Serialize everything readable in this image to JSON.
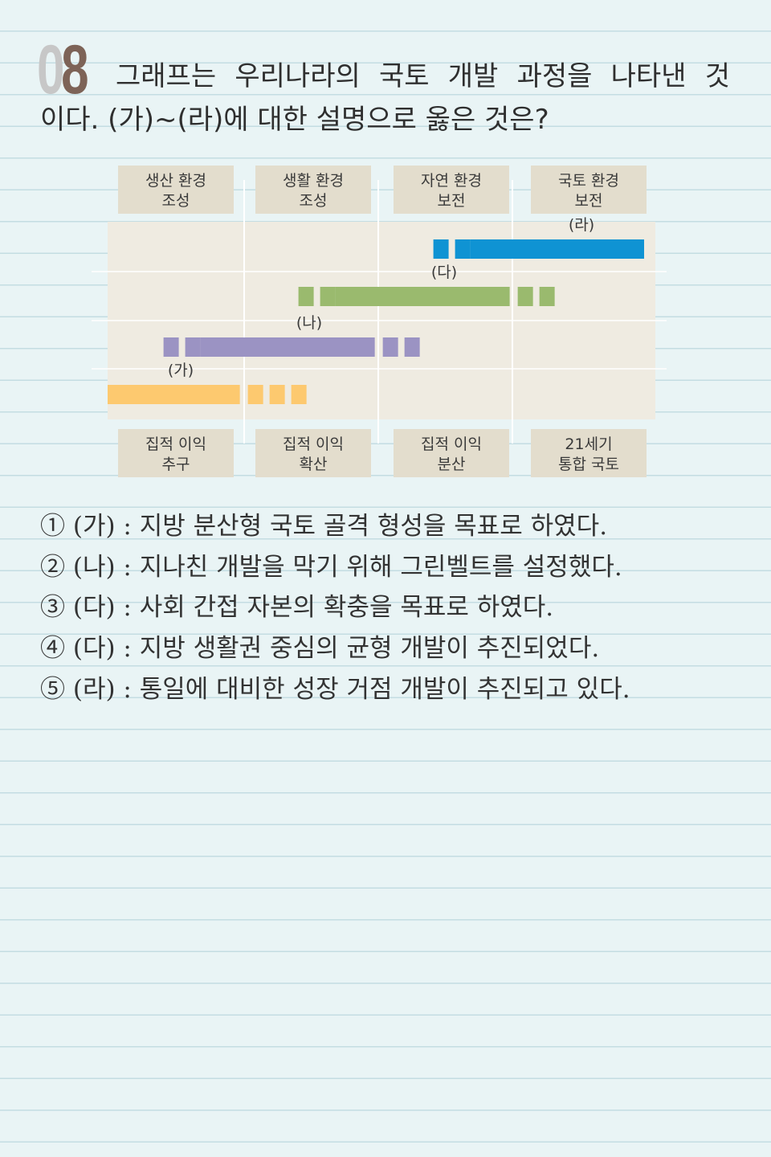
{
  "question": {
    "number_first": "0",
    "number_second": "8",
    "line1": "그래프는 우리나라의 국토 개발 과정을 나타낸 것",
    "line2": "이다. (가)~(라)에 대한 설명으로 옳은 것은?"
  },
  "chart_data": {
    "type": "timeline",
    "top_labels": [
      [
        "생산 환경",
        "조성"
      ],
      [
        "생활 환경",
        "조성"
      ],
      [
        "자연 환경",
        "보전"
      ],
      [
        "국토 환경",
        "보전"
      ]
    ],
    "bottom_labels": [
      [
        "집적 이익",
        "추구"
      ],
      [
        "집적 이익",
        "확산"
      ],
      [
        "집적 이익",
        "분산"
      ],
      [
        "21세기",
        "통합 국토"
      ]
    ],
    "series": [
      {
        "name": "(가)",
        "color": "#fdc96f",
        "start_phase": 1.0,
        "full_end_phase": 1.98,
        "fade_end_phase": 2.5
      },
      {
        "name": "(나)",
        "color": "#9b93c3",
        "start_phase": 1.7,
        "full_end_phase": 2.98,
        "fade_end_phase": 3.4
      },
      {
        "name": "(다)",
        "color": "#9aba6e",
        "start_phase": 2.7,
        "full_end_phase": 3.98,
        "fade_end_phase": 4.4
      },
      {
        "name": "(라)",
        "color": "#0f93d3",
        "start_phase": 3.7,
        "full_end_phase": 5.0,
        "fade_end_phase": 5.0
      }
    ],
    "colors": {
      "plot_bg": "#efebe1",
      "label_box_bg": "#e3ddcd",
      "divider": "#ffffff"
    }
  },
  "choices": [
    {
      "mark": "①",
      "text": "(가) : 지방 분산형 국토 골격 형성을 목표로 하였다."
    },
    {
      "mark": "②",
      "text": "(나) : 지나친 개발을 막기 위해 그린벨트를 설정했다."
    },
    {
      "mark": "③",
      "text": "(다) : 사회 간접 자본의 확충을 목표로 하였다."
    },
    {
      "mark": "④",
      "text": "(다) : 지방 생활권 중심의 균형 개발이 추진되었다."
    },
    {
      "mark": "⑤",
      "text": "(라) : 통일에 대비한 성장 거점 개발이 추진되고 있다."
    }
  ]
}
